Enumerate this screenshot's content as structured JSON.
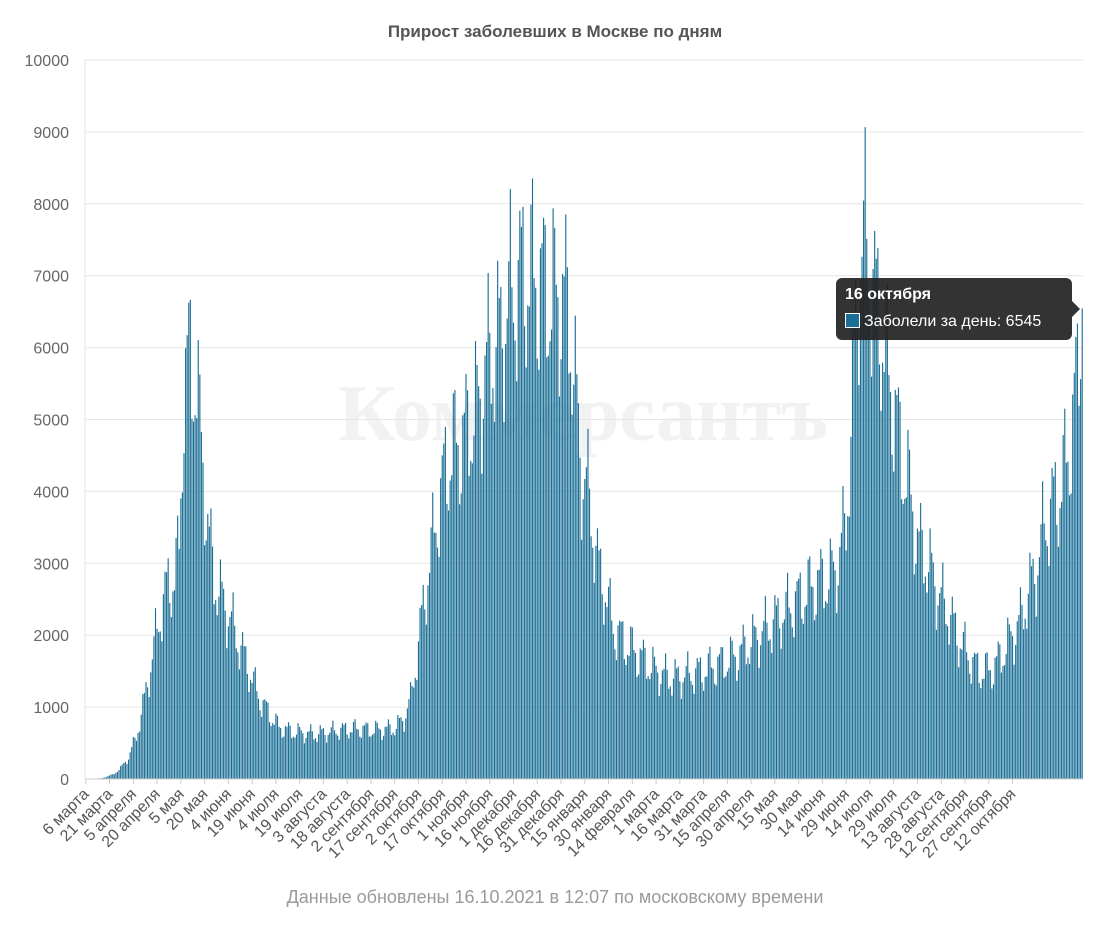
{
  "chart_data": {
    "type": "bar",
    "title": "Прирост заболевших в Москве по дням",
    "watermark": "Коммерсантъ",
    "footnote": "Данные обновлены 16.10.2021 в 12:07 по московскому времени",
    "ylim": [
      0,
      10000
    ],
    "y_ticks": [
      "0",
      "1000",
      "2000",
      "3000",
      "4000",
      "5000",
      "6000",
      "7000",
      "8000",
      "9000",
      "10000"
    ],
    "x_tick_labels": [
      "6 марта",
      "21 марта",
      "5 апреля",
      "20 апреля",
      "5 мая",
      "20 мая",
      "4 июня",
      "19 июня",
      "4 июля",
      "19 июля",
      "3 августа",
      "18 августа",
      "2 сентября",
      "17 сентября",
      "2 октября",
      "17 октября",
      "1 ноября",
      "16 ноября",
      "1 декабря",
      "16 декабря",
      "31 декабря",
      "15 января",
      "30 января",
      "14 февраля",
      "1 марта",
      "16 марта",
      "31 марта",
      "15 апреля",
      "30 апреля",
      "15 мая",
      "30 мая",
      "14 июня",
      "29 июня",
      "14 июля",
      "29 июля",
      "13 августа",
      "28 августа",
      "12 сентября",
      "27 сентября",
      "12 октября"
    ],
    "series": [
      {
        "name": "Заболели за день",
        "color": "#1b6f96",
        "anchors": [
          [
            0,
            0
          ],
          [
            10,
            10
          ],
          [
            17,
            60
          ],
          [
            22,
            150
          ],
          [
            27,
            300
          ],
          [
            32,
            600
          ],
          [
            37,
            1100
          ],
          [
            42,
            1700
          ],
          [
            47,
            2300
          ],
          [
            52,
            2700
          ],
          [
            56,
            2800
          ],
          [
            59,
            3200
          ],
          [
            62,
            5500
          ],
          [
            66,
            5900
          ],
          [
            69,
            5600
          ],
          [
            73,
            4700
          ],
          [
            77,
            3500
          ],
          [
            81,
            2800
          ],
          [
            86,
            2500
          ],
          [
            90,
            2300
          ],
          [
            95,
            2000
          ],
          [
            100,
            1700
          ],
          [
            105,
            1400
          ],
          [
            110,
            1100
          ],
          [
            116,
            900
          ],
          [
            122,
            720
          ],
          [
            130,
            660
          ],
          [
            145,
            620
          ],
          [
            160,
            680
          ],
          [
            172,
            700
          ],
          [
            180,
            680
          ],
          [
            190,
            690
          ],
          [
            196,
            720
          ],
          [
            201,
            850
          ],
          [
            205,
            1100
          ],
          [
            209,
            1700
          ],
          [
            213,
            2400
          ],
          [
            217,
            3000
          ],
          [
            222,
            3700
          ],
          [
            227,
            4300
          ],
          [
            232,
            4600
          ],
          [
            237,
            4700
          ],
          [
            242,
            4900
          ],
          [
            248,
            5200
          ],
          [
            252,
            5700
          ],
          [
            258,
            6000
          ],
          [
            262,
            6200
          ],
          [
            268,
            6700
          ],
          [
            275,
            7000
          ],
          [
            281,
            7000
          ],
          [
            287,
            6900
          ],
          [
            294,
            6700
          ],
          [
            300,
            6700
          ],
          [
            305,
            6500
          ],
          [
            309,
            5400
          ],
          [
            313,
            4300
          ],
          [
            318,
            3900
          ],
          [
            323,
            3000
          ],
          [
            327,
            2700
          ],
          [
            333,
            2100
          ],
          [
            340,
            1900
          ],
          [
            350,
            1700
          ],
          [
            360,
            1500
          ],
          [
            370,
            1400
          ],
          [
            380,
            1450
          ],
          [
            390,
            1500
          ],
          [
            400,
            1600
          ],
          [
            410,
            1700
          ],
          [
            420,
            1900
          ],
          [
            430,
            2100
          ],
          [
            440,
            2300
          ],
          [
            450,
            2500
          ],
          [
            460,
            2700
          ],
          [
            470,
            2800
          ],
          [
            475,
            3000
          ],
          [
            480,
            3600
          ],
          [
            483,
            4800
          ],
          [
            486,
            6300
          ],
          [
            489,
            7400
          ],
          [
            493,
            7400
          ],
          [
            497,
            6800
          ],
          [
            501,
            6400
          ],
          [
            505,
            5900
          ],
          [
            510,
            5200
          ],
          [
            515,
            4500
          ],
          [
            520,
            4000
          ],
          [
            525,
            3300
          ],
          [
            530,
            3100
          ],
          [
            535,
            2800
          ],
          [
            540,
            2500
          ],
          [
            545,
            2300
          ],
          [
            550,
            2000
          ],
          [
            555,
            1800
          ],
          [
            560,
            1600
          ],
          [
            565,
            1500
          ],
          [
            570,
            1500
          ],
          [
            575,
            1600
          ],
          [
            580,
            1800
          ],
          [
            585,
            2000
          ],
          [
            590,
            2200
          ],
          [
            595,
            2600
          ],
          [
            600,
            2900
          ],
          [
            605,
            3500
          ],
          [
            610,
            3800
          ],
          [
            615,
            4000
          ],
          [
            620,
            4500
          ],
          [
            623,
            5000
          ],
          [
            626,
            5600
          ],
          [
            628,
            6400
          ],
          [
            629,
            6545
          ]
        ]
      }
    ],
    "highlight": {
      "title": "16 октября",
      "series_label": "Заболели за день",
      "value": 6545
    }
  }
}
